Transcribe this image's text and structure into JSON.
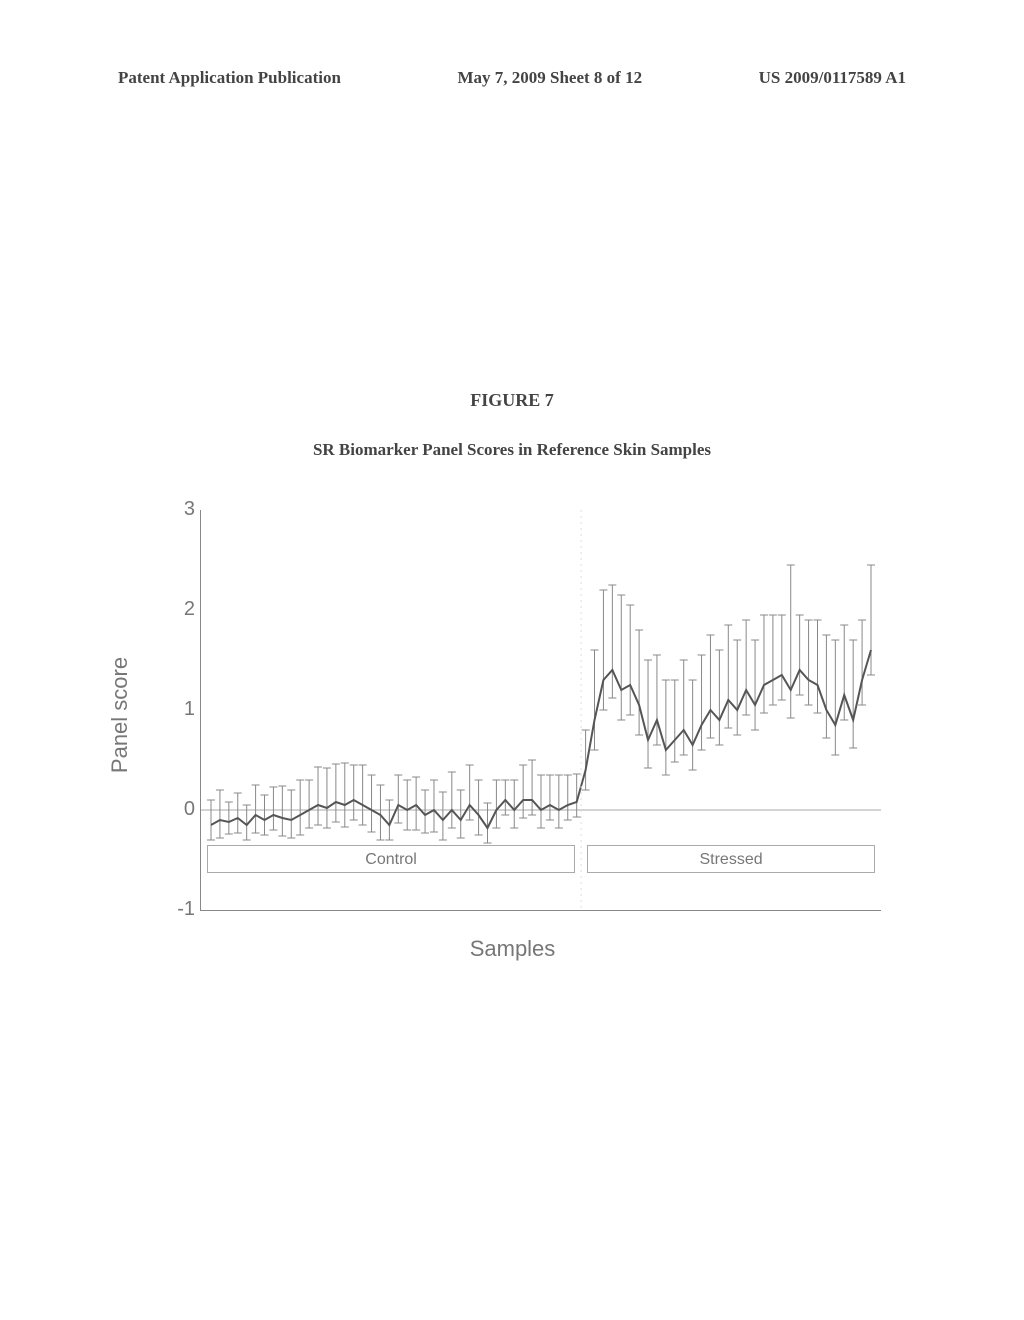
{
  "header": {
    "left": "Patent Application Publication",
    "center": "May 7, 2009  Sheet 8 of 12",
    "right": "US 2009/0117589 A1"
  },
  "figure": {
    "title": "FIGURE 7",
    "subtitle": "SR Biomarker Panel Scores in Reference Skin Samples"
  },
  "chart": {
    "type": "line-errorbar",
    "ylabel": "Panel score",
    "xlabel": "Samples",
    "ylim": [
      -1,
      3
    ],
    "yticks": [
      -1,
      0,
      1,
      2,
      3
    ],
    "background_color": "#ffffff",
    "axis_color": "#888888",
    "line_color": "#555555",
    "errorbar_color": "#888888",
    "zero_line_color": "#aaaaaa",
    "line_width": 2,
    "errorbar_width": 1,
    "cap_size": 4,
    "groups": {
      "control": {
        "label": "Control",
        "n": 42
      },
      "stressed": {
        "label": "Stressed",
        "n": 33
      }
    },
    "values": [
      -0.15,
      -0.1,
      -0.12,
      -0.08,
      -0.15,
      -0.05,
      -0.1,
      -0.05,
      -0.08,
      -0.1,
      -0.05,
      0.0,
      0.05,
      0.02,
      0.08,
      0.05,
      0.1,
      0.05,
      0.0,
      -0.05,
      -0.15,
      0.05,
      0.0,
      0.05,
      -0.05,
      0.0,
      -0.1,
      0.0,
      -0.1,
      0.05,
      -0.05,
      -0.18,
      0.0,
      0.1,
      0.0,
      0.1,
      0.1,
      0.0,
      0.05,
      0.0,
      0.05,
      0.08,
      0.4,
      0.9,
      1.3,
      1.4,
      1.2,
      1.25,
      1.05,
      0.7,
      0.9,
      0.6,
      0.7,
      0.8,
      0.65,
      0.85,
      1.0,
      0.9,
      1.1,
      1.0,
      1.2,
      1.05,
      1.25,
      1.3,
      1.35,
      1.2,
      1.4,
      1.3,
      1.25,
      1.0,
      0.85,
      1.15,
      0.9,
      1.3,
      1.6
    ],
    "err_hi": [
      0.25,
      0.3,
      0.2,
      0.25,
      0.2,
      0.3,
      0.25,
      0.28,
      0.32,
      0.3,
      0.35,
      0.3,
      0.38,
      0.4,
      0.38,
      0.42,
      0.35,
      0.4,
      0.35,
      0.3,
      0.25,
      0.3,
      0.3,
      0.28,
      0.25,
      0.3,
      0.28,
      0.38,
      0.3,
      0.4,
      0.35,
      0.25,
      0.3,
      0.2,
      0.3,
      0.35,
      0.4,
      0.35,
      0.3,
      0.35,
      0.3,
      0.28,
      0.4,
      0.7,
      0.9,
      0.85,
      0.95,
      0.8,
      0.75,
      0.8,
      0.65,
      0.7,
      0.6,
      0.7,
      0.65,
      0.7,
      0.75,
      0.7,
      0.75,
      0.7,
      0.7,
      0.65,
      0.7,
      0.65,
      0.6,
      1.25,
      0.55,
      0.6,
      0.65,
      0.75,
      0.85,
      0.7,
      0.8,
      0.6,
      0.85
    ],
    "err_lo": [
      0.15,
      0.18,
      0.12,
      0.15,
      0.15,
      0.18,
      0.15,
      0.15,
      0.18,
      0.18,
      0.2,
      0.18,
      0.2,
      0.2,
      0.2,
      0.22,
      0.2,
      0.2,
      0.22,
      0.25,
      0.15,
      0.18,
      0.2,
      0.25,
      0.18,
      0.22,
      0.2,
      0.18,
      0.18,
      0.15,
      0.2,
      0.15,
      0.18,
      0.15,
      0.18,
      0.18,
      0.15,
      0.18,
      0.15,
      0.18,
      0.15,
      0.15,
      0.2,
      0.3,
      0.3,
      0.28,
      0.3,
      0.3,
      0.3,
      0.28,
      0.25,
      0.25,
      0.22,
      0.25,
      0.25,
      0.25,
      0.28,
      0.25,
      0.28,
      0.25,
      0.25,
      0.25,
      0.28,
      0.25,
      0.25,
      0.28,
      0.25,
      0.25,
      0.28,
      0.28,
      0.3,
      0.25,
      0.28,
      0.25,
      0.25
    ]
  }
}
